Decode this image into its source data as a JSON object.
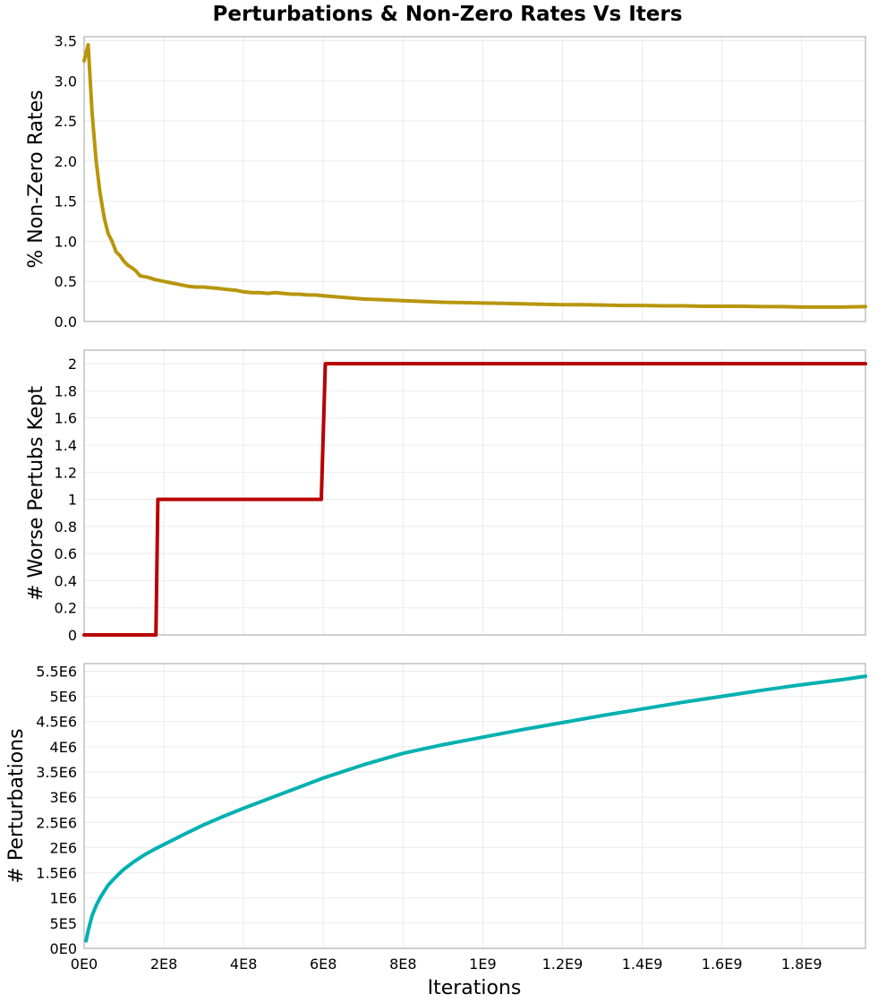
{
  "chart_data": {
    "type": "line",
    "title": "Perturbations & Non-Zero Rates Vs Iters",
    "xlabel": "Iterations",
    "xlim": [
      0,
      1960000000
    ],
    "x_ticks": [
      {
        "value": 0,
        "label": "0E0"
      },
      {
        "value": 200000000,
        "label": "2E8"
      },
      {
        "value": 400000000,
        "label": "4E8"
      },
      {
        "value": 600000000,
        "label": "6E8"
      },
      {
        "value": 800000000,
        "label": "8E8"
      },
      {
        "value": 1000000000,
        "label": "1E9"
      },
      {
        "value": 1200000000,
        "label": "1.2E9"
      },
      {
        "value": 1400000000,
        "label": "1.4E9"
      },
      {
        "value": 1600000000,
        "label": "1.6E9"
      },
      {
        "value": 1800000000,
        "label": "1.8E9"
      }
    ],
    "grid": true,
    "panels": [
      {
        "ylabel": "% Non-Zero Rates",
        "ylim": [
          0,
          3.55
        ],
        "color": "#b8960c",
        "y_ticks": [
          {
            "value": 0,
            "label": "0.0"
          },
          {
            "value": 0.5,
            "label": "0.5"
          },
          {
            "value": 1.0,
            "label": "1.0"
          },
          {
            "value": 1.5,
            "label": "1.5"
          },
          {
            "value": 2.0,
            "label": "2.0"
          },
          {
            "value": 2.5,
            "label": "2.5"
          },
          {
            "value": 3.0,
            "label": "3.0"
          },
          {
            "value": 3.5,
            "label": "3.5"
          }
        ],
        "series": [
          {
            "x": [
              0,
              10000000,
              20000000,
              30000000,
              40000000,
              50000000,
              60000000,
              70000000,
              80000000,
              90000000,
              100000000,
              110000000,
              120000000,
              130000000,
              140000000,
              150000000,
              160000000,
              180000000,
              200000000,
              220000000,
              240000000,
              260000000,
              280000000,
              300000000,
              320000000,
              340000000,
              360000000,
              380000000,
              400000000,
              420000000,
              440000000,
              460000000,
              480000000,
              500000000,
              520000000,
              540000000,
              560000000,
              580000000,
              600000000,
              650000000,
              700000000,
              750000000,
              800000000,
              850000000,
              900000000,
              950000000,
              1000000000,
              1050000000,
              1100000000,
              1150000000,
              1200000000,
              1250000000,
              1300000000,
              1350000000,
              1400000000,
              1450000000,
              1500000000,
              1550000000,
              1600000000,
              1650000000,
              1700000000,
              1750000000,
              1800000000,
              1850000000,
              1900000000,
              1960000000
            ],
            "y": [
              3.25,
              3.45,
              2.6,
              2.0,
              1.6,
              1.3,
              1.1,
              1.0,
              0.87,
              0.82,
              0.75,
              0.7,
              0.67,
              0.63,
              0.57,
              0.56,
              0.55,
              0.52,
              0.5,
              0.48,
              0.46,
              0.44,
              0.43,
              0.43,
              0.42,
              0.41,
              0.4,
              0.39,
              0.37,
              0.36,
              0.36,
              0.35,
              0.36,
              0.35,
              0.34,
              0.34,
              0.33,
              0.33,
              0.32,
              0.3,
              0.28,
              0.27,
              0.26,
              0.25,
              0.24,
              0.235,
              0.23,
              0.225,
              0.22,
              0.215,
              0.21,
              0.21,
              0.205,
              0.2,
              0.2,
              0.195,
              0.195,
              0.19,
              0.19,
              0.19,
              0.185,
              0.185,
              0.18,
              0.18,
              0.18,
              0.185
            ]
          }
        ]
      },
      {
        "ylabel": "# Worse Pertubs Kept",
        "ylim": [
          0,
          2.1
        ],
        "color": "#b80000",
        "y_ticks": [
          {
            "value": 0,
            "label": "0"
          },
          {
            "value": 0.2,
            "label": "0.2"
          },
          {
            "value": 0.4,
            "label": "0.4"
          },
          {
            "value": 0.6,
            "label": "0.6"
          },
          {
            "value": 0.8,
            "label": "0.8"
          },
          {
            "value": 1.0,
            "label": "1"
          },
          {
            "value": 1.2,
            "label": "1.2"
          },
          {
            "value": 1.4,
            "label": "1.4"
          },
          {
            "value": 1.6,
            "label": "1.6"
          },
          {
            "value": 1.8,
            "label": "1.8"
          },
          {
            "value": 2.0,
            "label": "2"
          }
        ],
        "series": [
          {
            "x": [
              0,
              180000000,
              185000000,
              595000000,
              605000000,
              1960000000
            ],
            "y": [
              0,
              0,
              1,
              1,
              2,
              2
            ]
          }
        ]
      },
      {
        "ylabel": "# Perturbations",
        "ylim": [
          0,
          5650000
        ],
        "color": "#00b0b0",
        "y_ticks": [
          {
            "value": 0,
            "label": "0E0"
          },
          {
            "value": 500000,
            "label": "5E5"
          },
          {
            "value": 1000000,
            "label": "1E6"
          },
          {
            "value": 1500000,
            "label": "1.5E6"
          },
          {
            "value": 2000000,
            "label": "2E6"
          },
          {
            "value": 2500000,
            "label": "2.5E6"
          },
          {
            "value": 3000000,
            "label": "3E6"
          },
          {
            "value": 3500000,
            "label": "3.5E6"
          },
          {
            "value": 4000000,
            "label": "4E6"
          },
          {
            "value": 4500000,
            "label": "4.5E6"
          },
          {
            "value": 5000000,
            "label": "5E6"
          },
          {
            "value": 5500000,
            "label": "5.5E6"
          }
        ],
        "series": [
          {
            "x": [
              5000000,
              10000000,
              20000000,
              30000000,
              40000000,
              50000000,
              60000000,
              70000000,
              80000000,
              90000000,
              100000000,
              125000000,
              150000000,
              175000000,
              200000000,
              250000000,
              300000000,
              350000000,
              400000000,
              450000000,
              500000000,
              550000000,
              600000000,
              700000000,
              800000000,
              900000000,
              1000000000,
              1100000000,
              1200000000,
              1300000000,
              1400000000,
              1500000000,
              1600000000,
              1700000000,
              1800000000,
              1900000000,
              1960000000
            ],
            "y": [
              150000,
              350000,
              650000,
              850000,
              1000000,
              1130000,
              1250000,
              1340000,
              1420000,
              1500000,
              1570000,
              1720000,
              1850000,
              1960000,
              2060000,
              2260000,
              2450000,
              2620000,
              2780000,
              2930000,
              3080000,
              3230000,
              3380000,
              3640000,
              3870000,
              4040000,
              4190000,
              4340000,
              4480000,
              4620000,
              4750000,
              4880000,
              5000000,
              5120000,
              5230000,
              5330000,
              5400000
            ]
          }
        ]
      }
    ]
  }
}
